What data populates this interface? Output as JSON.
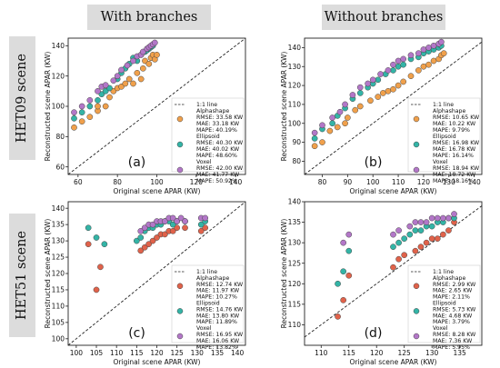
{
  "headers": {
    "col_left": "With branches",
    "col_right": "Without branches",
    "row_top": "HET09 scene",
    "row_bottom": "HET51 scene"
  },
  "colors": {
    "Alphashape": "#f0a04b",
    "Ellipsoid": "#33b4a6",
    "Voxel": "#b377c8",
    "het51_alpha": "#e0624a"
  },
  "chart_data": [
    {
      "id": "a",
      "panel_label": "(a)",
      "type": "scatter",
      "xlabel": "Original scene APAR (KW)",
      "ylabel": "Reconstructed scene APAR (KW)",
      "xlim": [
        55,
        145
      ],
      "ylim": [
        55,
        145
      ],
      "xticks": [
        60,
        80,
        100,
        120,
        140
      ],
      "yticks": [
        60,
        80,
        100,
        120,
        140
      ],
      "one_to_one_label": "1:1 line",
      "series": [
        {
          "name": "Alphashape",
          "color": "#f0a04b",
          "stats": [
            "RMSE: 33.58 KW",
            "MAE: 33.18 KW",
            "MAPE: 40.19%"
          ],
          "points": [
            [
              58,
              86
            ],
            [
              62,
              90
            ],
            [
              66,
              93
            ],
            [
              70,
              97
            ],
            [
              70,
              100
            ],
            [
              74,
              100
            ],
            [
              76,
              106
            ],
            [
              78,
              110
            ],
            [
              80,
              112
            ],
            [
              82,
              113
            ],
            [
              84,
              115
            ],
            [
              86,
              118
            ],
            [
              88,
              115
            ],
            [
              90,
              122
            ],
            [
              92,
              118
            ],
            [
              93,
              125
            ],
            [
              94,
              130
            ],
            [
              96,
              128
            ],
            [
              97,
              132
            ],
            [
              98,
              134
            ],
            [
              99,
              131
            ],
            [
              100,
              134
            ]
          ]
        },
        {
          "name": "Ellipsoid",
          "color": "#33b4a6",
          "stats": [
            "RMSE: 40.30 KW",
            "MAE: 40.02 KW",
            "MAPE: 48.60%"
          ],
          "points": [
            [
              58,
              92
            ],
            [
              62,
              96
            ],
            [
              66,
              100
            ],
            [
              70,
              104
            ],
            [
              72,
              108
            ],
            [
              74,
              110
            ],
            [
              76,
              112
            ],
            [
              80,
              118
            ],
            [
              82,
              122
            ],
            [
              84,
              125
            ],
            [
              86,
              128
            ],
            [
              88,
              132
            ],
            [
              90,
              130
            ],
            [
              92,
              134
            ],
            [
              94,
              136
            ],
            [
              95,
              137
            ],
            [
              96,
              138
            ],
            [
              97,
              139
            ],
            [
              98,
              140
            ]
          ]
        },
        {
          "name": "Voxel",
          "color": "#b377c8",
          "stats": [
            "RMSE: 42.00 KW",
            "MAE: 41.77 KW",
            "MAPE: 50.92%"
          ],
          "points": [
            [
              58,
              96
            ],
            [
              62,
              100
            ],
            [
              66,
              104
            ],
            [
              70,
              110
            ],
            [
              72,
              113
            ],
            [
              74,
              114
            ],
            [
              78,
              117
            ],
            [
              80,
              120
            ],
            [
              82,
              124
            ],
            [
              85,
              127
            ],
            [
              88,
              130
            ],
            [
              90,
              133
            ],
            [
              92,
              134
            ],
            [
              93,
              136
            ],
            [
              95,
              138
            ],
            [
              96,
              139
            ],
            [
              97,
              140
            ],
            [
              98,
              141
            ],
            [
              99,
              142
            ]
          ]
        }
      ]
    },
    {
      "id": "b",
      "panel_label": "(b)",
      "type": "scatter",
      "xlabel": "Original scene APAR (KW)",
      "ylabel": "Reconstructed scene APAR (KW)",
      "xlim": [
        73,
        143
      ],
      "ylim": [
        73,
        145
      ],
      "xticks": [
        80,
        90,
        100,
        110,
        120,
        130,
        140
      ],
      "yticks": [
        80,
        90,
        100,
        110,
        120,
        130,
        140
      ],
      "one_to_one_label": "1:1 line",
      "series": [
        {
          "name": "Alphashape",
          "color": "#f0a04b",
          "stats": [
            "RMSE: 10.65 KW",
            "MAE: 10.22 KW",
            "MAPE: 9.79%"
          ],
          "points": [
            [
              77,
              88
            ],
            [
              80,
              90
            ],
            [
              83,
              96
            ],
            [
              86,
              98
            ],
            [
              89,
              100
            ],
            [
              90,
              103
            ],
            [
              93,
              107
            ],
            [
              95,
              109
            ],
            [
              99,
              112
            ],
            [
              102,
              114
            ],
            [
              104,
              116
            ],
            [
              106,
              117
            ],
            [
              108,
              118
            ],
            [
              110,
              120
            ],
            [
              112,
              122
            ],
            [
              115,
              125
            ],
            [
              118,
              128
            ],
            [
              120,
              130
            ],
            [
              122,
              131
            ],
            [
              124,
              133
            ],
            [
              126,
              134
            ],
            [
              127,
              136
            ],
            [
              128,
              137
            ]
          ]
        },
        {
          "name": "Ellipsoid",
          "color": "#33b4a6",
          "stats": [
            "RMSE: 16.98 KW",
            "MAE: 16.78 KW",
            "MAPE: 16.14%"
          ],
          "points": [
            [
              77,
              92
            ],
            [
              80,
              97
            ],
            [
              84,
              100
            ],
            [
              86,
              104
            ],
            [
              89,
              108
            ],
            [
              92,
              113
            ],
            [
              95,
              116
            ],
            [
              98,
              119
            ],
            [
              100,
              121
            ],
            [
              102,
              123
            ],
            [
              105,
              126
            ],
            [
              108,
              128
            ],
            [
              110,
              130
            ],
            [
              112,
              131
            ],
            [
              115,
              134
            ],
            [
              118,
              135
            ],
            [
              120,
              137
            ],
            [
              122,
              138
            ],
            [
              124,
              139
            ],
            [
              126,
              140
            ],
            [
              127,
              141
            ]
          ]
        },
        {
          "name": "Voxel",
          "color": "#b377c8",
          "stats": [
            "RMSE: 18.94 KW",
            "MAE: 18.72 KW",
            "MAPE: 18.16%"
          ],
          "points": [
            [
              77,
              95
            ],
            [
              80,
              99
            ],
            [
              84,
              103
            ],
            [
              87,
              106
            ],
            [
              89,
              110
            ],
            [
              92,
              115
            ],
            [
              95,
              119
            ],
            [
              98,
              121
            ],
            [
              100,
              123
            ],
            [
              103,
              126
            ],
            [
              106,
              128
            ],
            [
              108,
              131
            ],
            [
              110,
              133
            ],
            [
              112,
              134
            ],
            [
              115,
              136
            ],
            [
              118,
              137
            ],
            [
              120,
              139
            ],
            [
              122,
              140
            ],
            [
              124,
              141
            ],
            [
              126,
              142
            ],
            [
              127,
              143
            ]
          ]
        }
      ]
    },
    {
      "id": "c",
      "panel_label": "(c)",
      "type": "scatter",
      "xlabel": "Original scene APAR (KW)",
      "ylabel": "Reconstructed scene APAR (KW)",
      "xlim": [
        98,
        142
      ],
      "ylim": [
        98,
        142
      ],
      "xticks": [
        100,
        105,
        110,
        115,
        120,
        125,
        130,
        135,
        140
      ],
      "yticks": [
        100,
        105,
        110,
        115,
        120,
        125,
        130,
        135,
        140
      ],
      "one_to_one_label": "1:1 line",
      "series": [
        {
          "name": "Alphashape",
          "color": "#e0624a",
          "stats": [
            "RMSE: 12.74 KW",
            "MAE: 11.97 KW",
            "MAPE: 10.27%"
          ],
          "points": [
            [
              105,
              115
            ],
            [
              103,
              129
            ],
            [
              106,
              122
            ],
            [
              116,
              127
            ],
            [
              117,
              128
            ],
            [
              118,
              129
            ],
            [
              119,
              130
            ],
            [
              120,
              131
            ],
            [
              121,
              132
            ],
            [
              122,
              132
            ],
            [
              123,
              133
            ],
            [
              124,
              133
            ],
            [
              125,
              134
            ],
            [
              127,
              134
            ],
            [
              131,
              133
            ],
            [
              132,
              134
            ]
          ]
        },
        {
          "name": "Ellipsoid",
          "color": "#33b4a6",
          "stats": [
            "RMSE: 14.76 KW",
            "MAE: 13.80 KW",
            "MAPE: 11.89%"
          ],
          "points": [
            [
              103,
              134
            ],
            [
              105,
              131
            ],
            [
              107,
              129
            ],
            [
              115,
              130
            ],
            [
              116,
              131
            ],
            [
              117,
              133
            ],
            [
              118,
              134
            ],
            [
              119,
              134
            ],
            [
              120,
              135
            ],
            [
              121,
              135
            ],
            [
              122,
              136
            ],
            [
              123,
              136
            ],
            [
              124,
              135
            ],
            [
              125,
              136
            ],
            [
              127,
              136
            ],
            [
              131,
              135
            ],
            [
              132,
              136
            ]
          ]
        },
        {
          "name": "Voxel",
          "color": "#b377c8",
          "stats": [
            "RMSE: 16.95 KW",
            "MAE: 16.06 KW",
            "MAPE: 13.82%"
          ],
          "points": [
            [
              116,
              133
            ],
            [
              117,
              134
            ],
            [
              118,
              135
            ],
            [
              119,
              135
            ],
            [
              120,
              136
            ],
            [
              121,
              136
            ],
            [
              122,
              136
            ],
            [
              123,
              137
            ],
            [
              124,
              137
            ],
            [
              125,
              136
            ],
            [
              126,
              137
            ],
            [
              127,
              136
            ],
            [
              131,
              137
            ],
            [
              132,
              137
            ]
          ]
        }
      ]
    },
    {
      "id": "d",
      "panel_label": "(d)",
      "type": "scatter",
      "xlabel": "Original scene APAR (KW)",
      "ylabel": "Reconstructed scene APAR (KW)",
      "xlim": [
        107,
        139
      ],
      "ylim": [
        105,
        140
      ],
      "xticks": [
        110,
        115,
        120,
        125,
        130,
        135
      ],
      "yticks": [
        110,
        115,
        120,
        125,
        130,
        135,
        140
      ],
      "one_to_one_label": "1:1 line",
      "series": [
        {
          "name": "Alphashape",
          "color": "#e0624a",
          "stats": [
            "RMSE: 2.99 KW",
            "MAE: 2.65 KW",
            "MAPE: 2.11%"
          ],
          "points": [
            [
              113,
              112
            ],
            [
              114,
              116
            ],
            [
              115,
              122
            ],
            [
              123,
              124
            ],
            [
              124,
              126
            ],
            [
              125,
              127
            ],
            [
              127,
              128
            ],
            [
              128,
              129
            ],
            [
              129,
              130
            ],
            [
              130,
              131
            ],
            [
              131,
              131
            ],
            [
              132,
              132
            ],
            [
              133,
              133
            ],
            [
              134,
              135
            ]
          ]
        },
        {
          "name": "Ellipsoid",
          "color": "#33b4a6",
          "stats": [
            "RMSE: 5.73 KW",
            "MAE: 4.68 KW",
            "MAPE: 3.79%"
          ],
          "points": [
            [
              113,
              120
            ],
            [
              114,
              123
            ],
            [
              115,
              128
            ],
            [
              123,
              129
            ],
            [
              124,
              130
            ],
            [
              125,
              131
            ],
            [
              126,
              132
            ],
            [
              127,
              133
            ],
            [
              128,
              133
            ],
            [
              129,
              134
            ],
            [
              130,
              134
            ],
            [
              131,
              135
            ],
            [
              132,
              135
            ],
            [
              133,
              136
            ],
            [
              134,
              136
            ]
          ]
        },
        {
          "name": "Voxel",
          "color": "#b377c8",
          "stats": [
            "RMSE: 8.28 KW",
            "MAE: 7.36 KW",
            "MAPE: 5.95%"
          ],
          "points": [
            [
              114,
              130
            ],
            [
              115,
              132
            ],
            [
              123,
              132
            ],
            [
              124,
              133
            ],
            [
              126,
              134
            ],
            [
              127,
              135
            ],
            [
              128,
              135
            ],
            [
              129,
              135
            ],
            [
              130,
              136
            ],
            [
              131,
              136
            ],
            [
              132,
              136
            ],
            [
              133,
              136
            ],
            [
              134,
              137
            ]
          ]
        }
      ]
    }
  ]
}
